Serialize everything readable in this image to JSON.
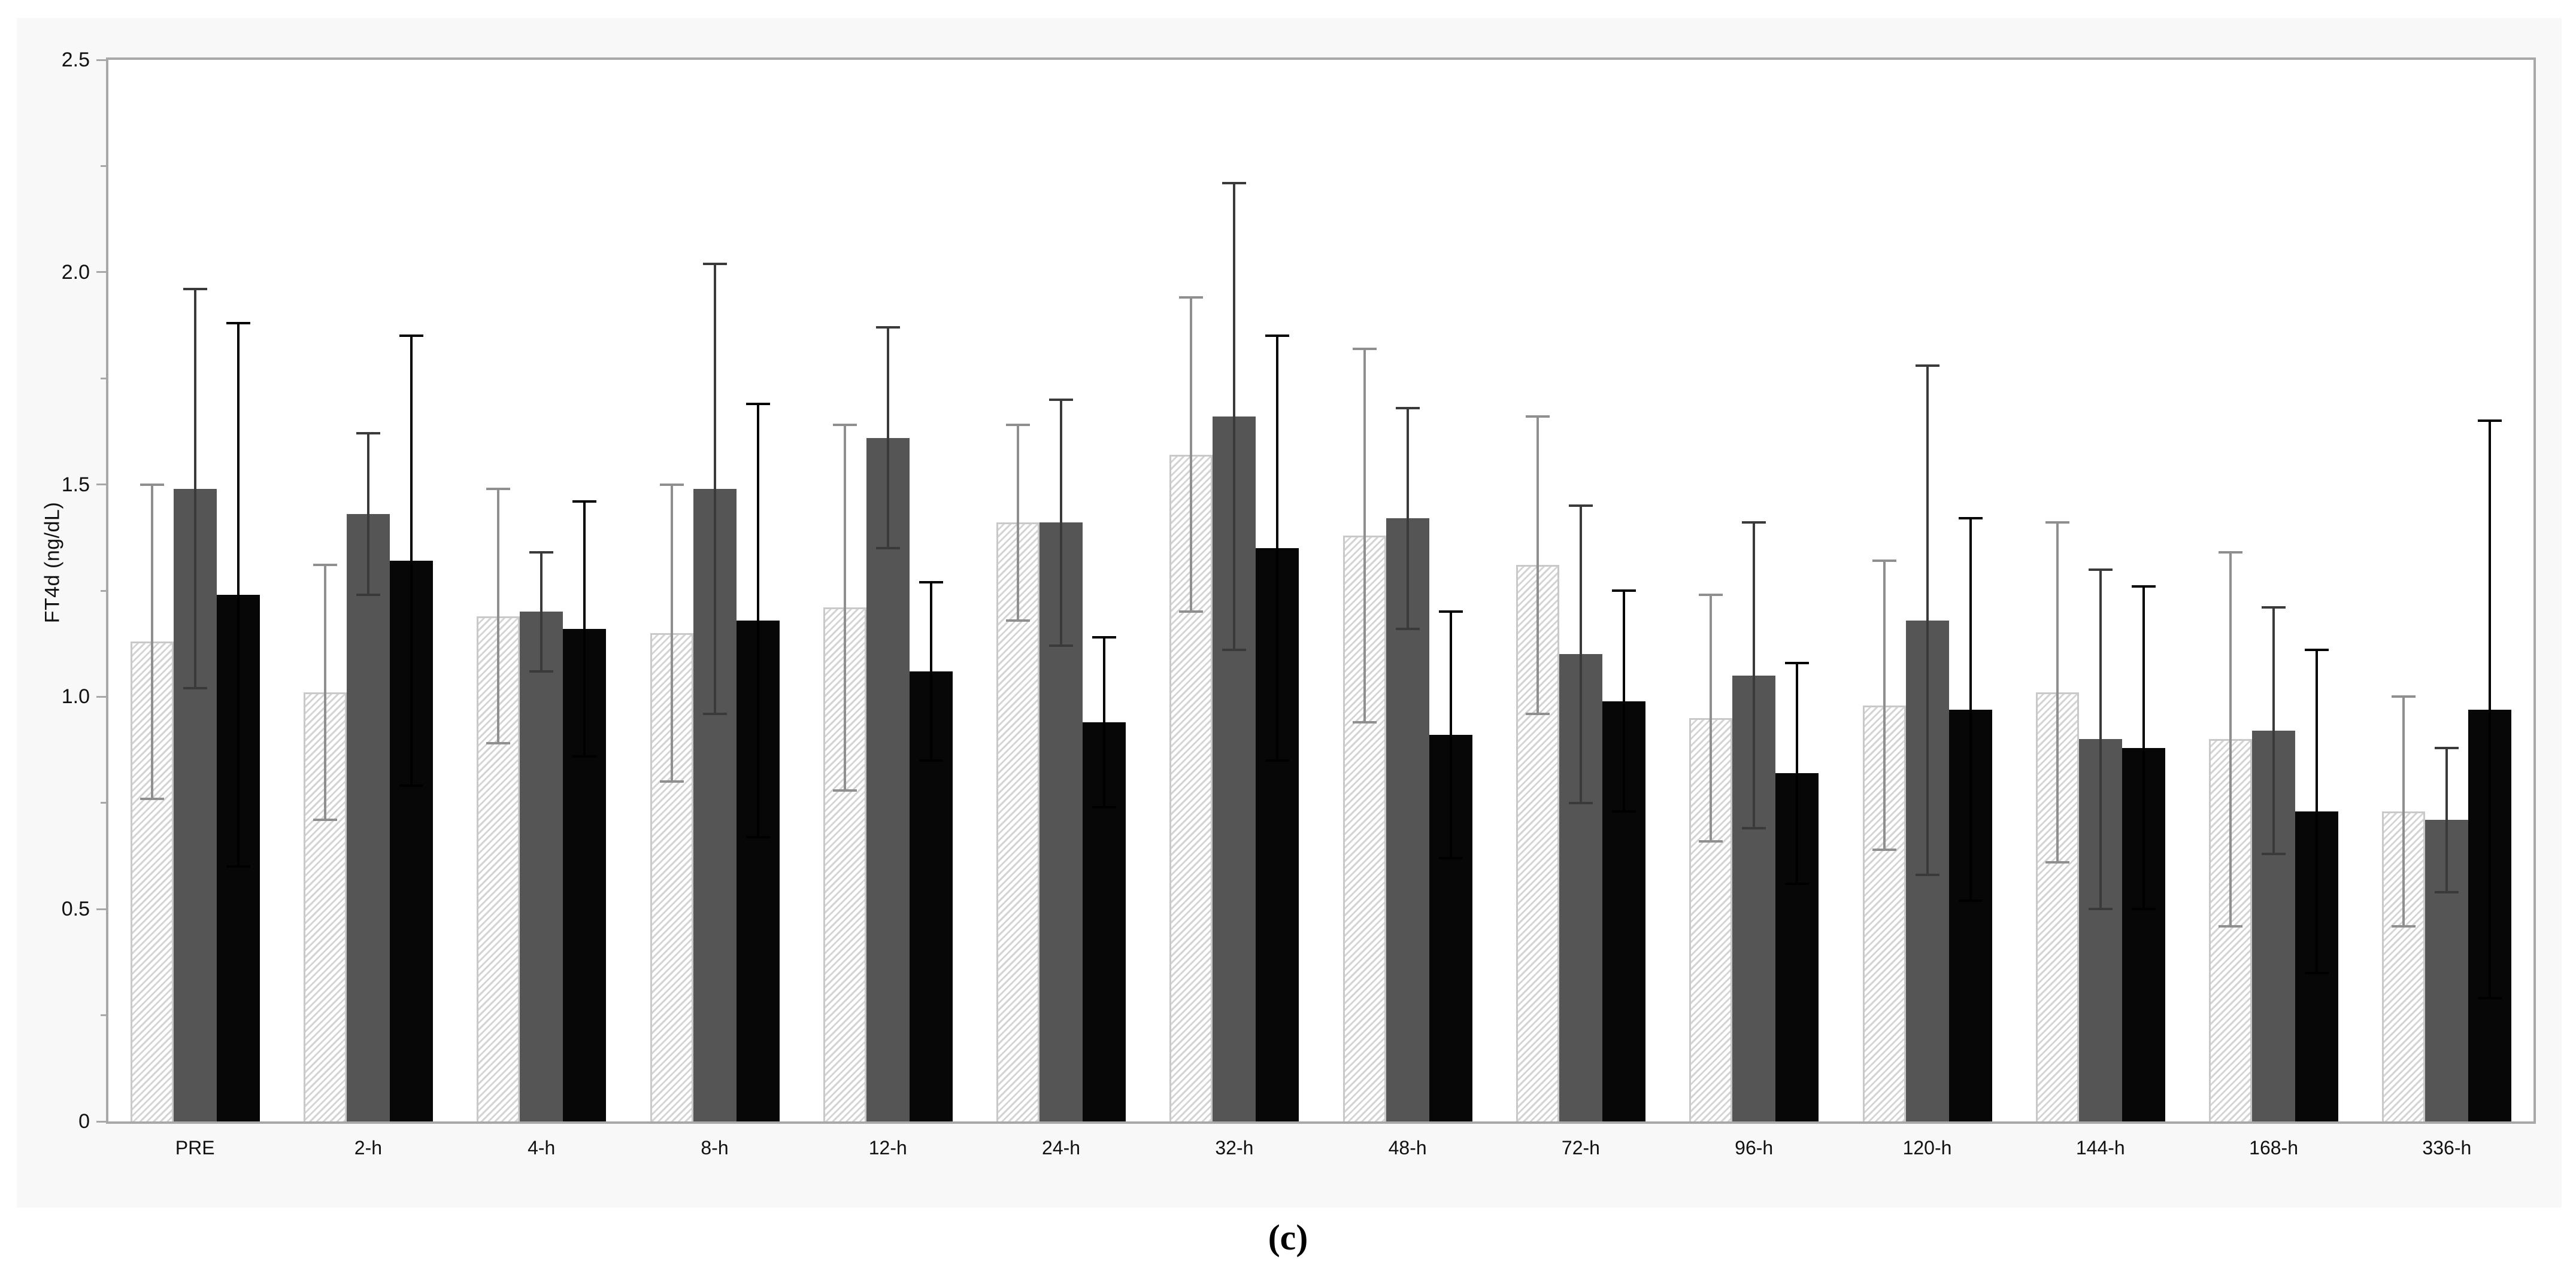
{
  "caption": "(c)",
  "chart_data": {
    "type": "bar",
    "title": "",
    "ylabel": "FT4d (ng/dL)",
    "xlabel": "",
    "ylim": [
      0,
      2.5
    ],
    "y_major_ticks": {
      "values": [
        0,
        0.5,
        1.0,
        1.5,
        2.0,
        2.5
      ],
      "labels": [
        "0",
        "0.5",
        "1.0",
        "1.5",
        "2.0",
        "2.5"
      ]
    },
    "y_minor_tick_step": 0.25,
    "grid": false,
    "legend_position": "none",
    "error_bars": "symmetric plus-minus SD with caps",
    "categories": [
      "PRE",
      "2-h",
      "4-h",
      "8-h",
      "12-h",
      "24-h",
      "32-h",
      "48-h",
      "72-h",
      "96-h",
      "120-h",
      "144-h",
      "168-h",
      "336-h"
    ],
    "series": [
      {
        "name": "hatched",
        "fill": "diagonal-hatch",
        "values": [
          1.13,
          1.01,
          1.19,
          1.15,
          1.21,
          1.41,
          1.57,
          1.38,
          1.31,
          0.95,
          0.98,
          1.01,
          0.9,
          0.73
        ],
        "sd": [
          0.37,
          0.3,
          0.3,
          0.35,
          0.43,
          0.23,
          0.37,
          0.44,
          0.35,
          0.29,
          0.34,
          0.4,
          0.44,
          0.27
        ]
      },
      {
        "name": "dark-gray",
        "fill": "#555555",
        "values": [
          1.49,
          1.43,
          1.2,
          1.49,
          1.61,
          1.41,
          1.66,
          1.42,
          1.1,
          1.05,
          1.18,
          0.9,
          0.92,
          0.71
        ],
        "sd": [
          0.47,
          0.19,
          0.14,
          0.53,
          0.26,
          0.29,
          0.55,
          0.26,
          0.35,
          0.36,
          0.6,
          0.4,
          0.29,
          0.17
        ]
      },
      {
        "name": "black",
        "fill": "#070707",
        "values": [
          1.24,
          1.32,
          1.16,
          1.18,
          1.06,
          0.94,
          1.35,
          0.91,
          0.99,
          0.82,
          0.97,
          0.88,
          0.73,
          0.97
        ],
        "sd": [
          0.64,
          0.53,
          0.3,
          0.51,
          0.21,
          0.2,
          0.5,
          0.29,
          0.26,
          0.26,
          0.45,
          0.38,
          0.38,
          0.68
        ]
      }
    ]
  },
  "colors": {
    "page_bg": "#ffffff",
    "panel_bg": "#f8f8f8",
    "plot_bg": "#ffffff",
    "axis": "#a8a8a8",
    "tick_label": "#111111",
    "hatch_line": "#d4d4d4",
    "hatched_bar_border": "#c9c9c9",
    "err_hatched": "#8f8f8f",
    "err_dark_gray": "#3a3a3a",
    "err_black": "#000000"
  }
}
